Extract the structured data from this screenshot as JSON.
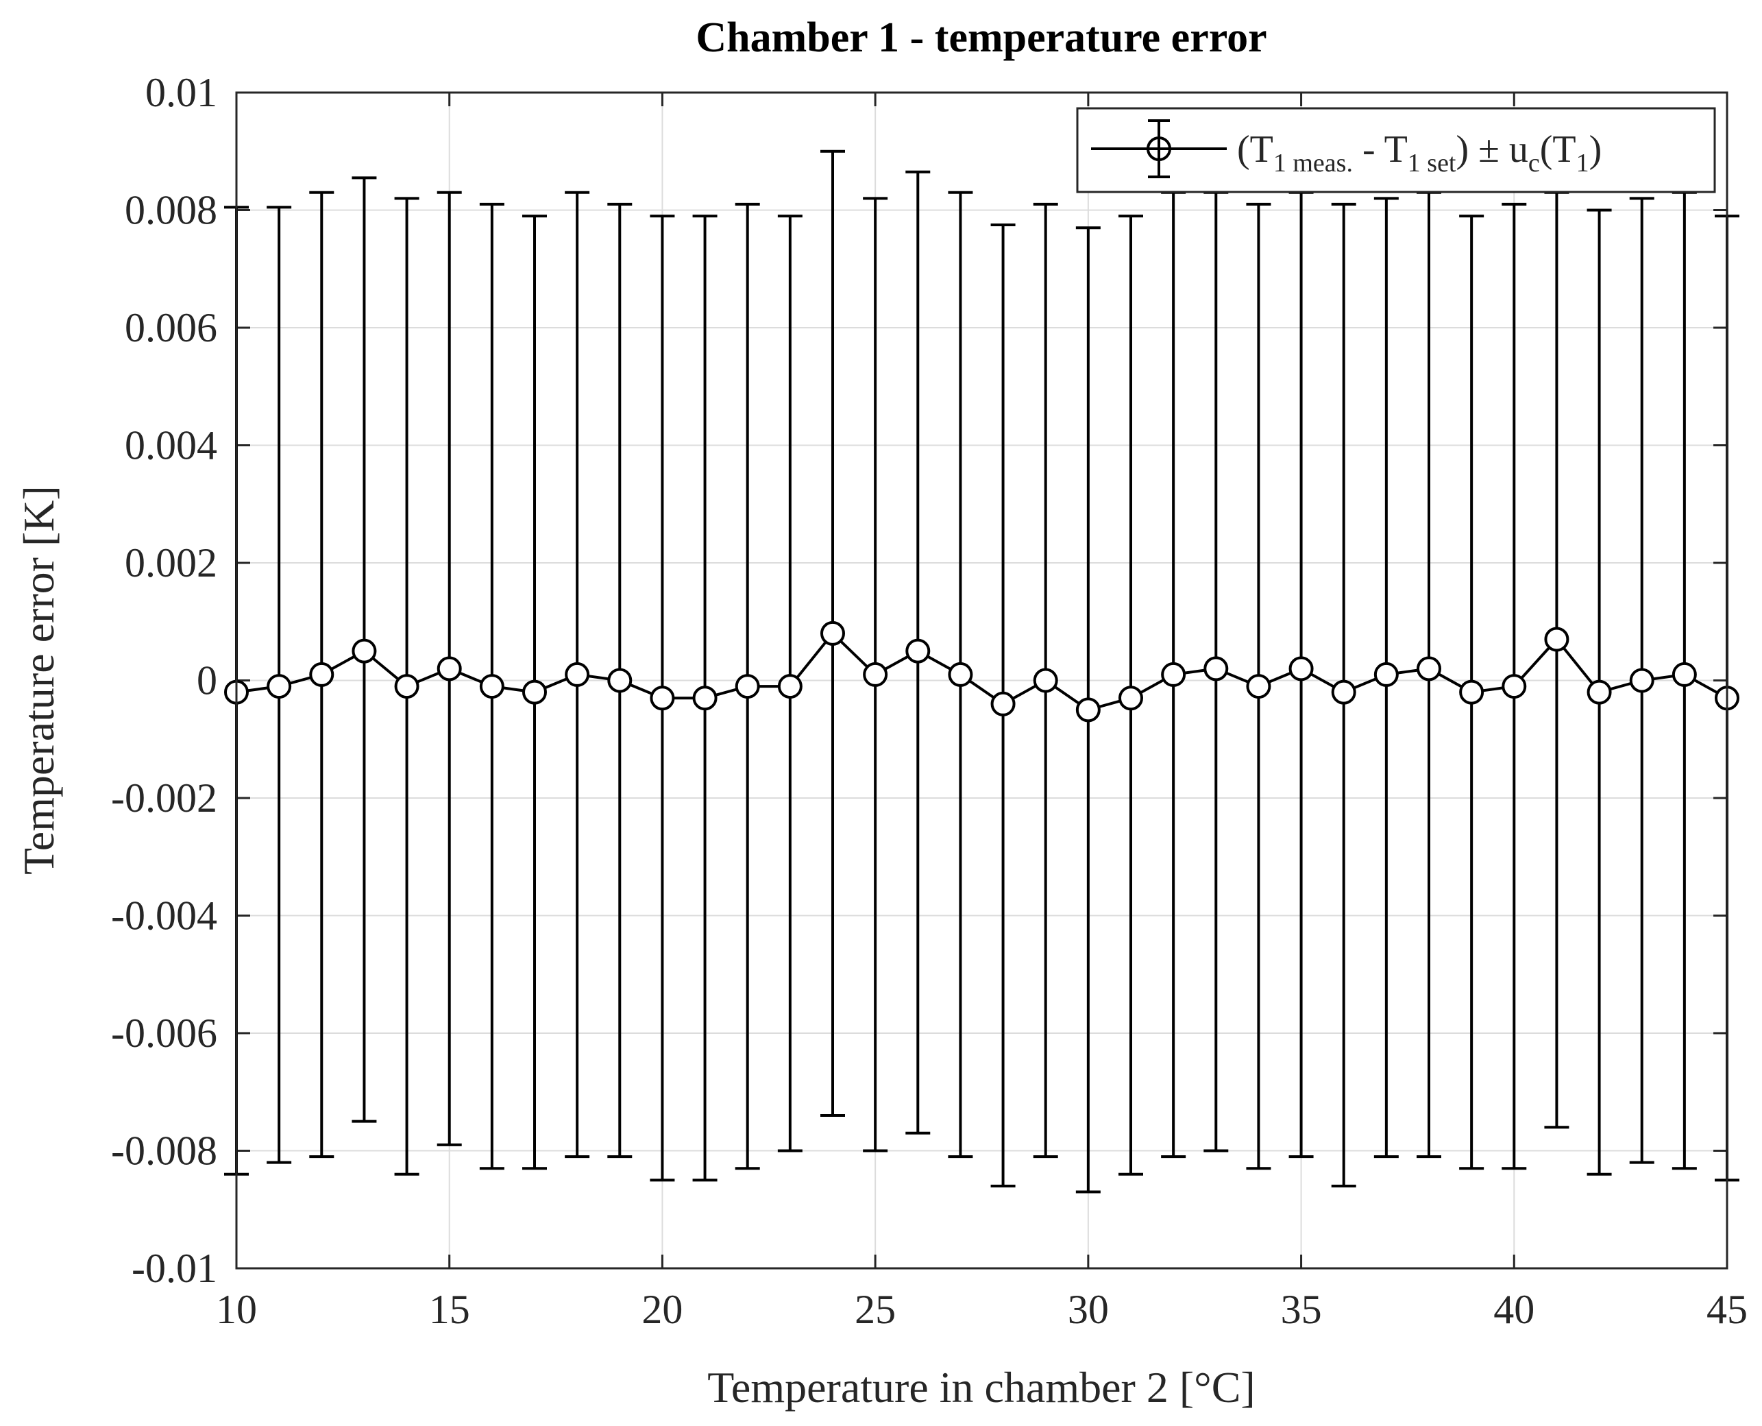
{
  "chart_data": {
    "type": "scatter",
    "title": "Chamber 1 - temperature error",
    "xlabel": "Temperature in chamber 2 [°C]",
    "ylabel": "Temperature error [K]",
    "xlim": [
      10,
      45
    ],
    "ylim": [
      -0.01,
      0.01
    ],
    "xticks": [
      10,
      15,
      20,
      25,
      30,
      35,
      40,
      45
    ],
    "xtick_labels": [
      "10",
      "15",
      "20",
      "25",
      "30",
      "35",
      "40",
      "45"
    ],
    "yticks": [
      -0.01,
      -0.008,
      -0.006,
      -0.004,
      -0.002,
      0,
      0.002,
      0.004,
      0.006,
      0.008,
      0.01
    ],
    "ytick_labels": [
      "-0.01",
      "-0.008",
      "-0.006",
      "-0.004",
      "-0.002",
      "0",
      "0.002",
      "0.004",
      "0.006",
      "0.008",
      "0.01"
    ],
    "grid": true,
    "legend_position": "top-right",
    "legend": {
      "open": "(T",
      "sub1": "1 meas.",
      "mid": " - T",
      "sub2": "1 set",
      "close": ") ± u",
      "sub3": "c",
      "tail_open": "(T",
      "sub4": "1",
      "tail_close": ")"
    },
    "series": [
      {
        "marker": "circle",
        "line": "solid",
        "color": "#000000",
        "x": [
          10,
          11,
          12,
          13,
          14,
          15,
          16,
          17,
          18,
          19,
          20,
          21,
          22,
          23,
          24,
          25,
          26,
          27,
          28,
          29,
          30,
          31,
          32,
          33,
          34,
          35,
          36,
          37,
          38,
          39,
          40,
          41,
          42,
          43,
          44,
          45
        ],
        "y": [
          -0.0002,
          -0.0001,
          0.0001,
          0.0005,
          -0.0001,
          0.0002,
          -0.0001,
          -0.0002,
          0.0001,
          0.0,
          -0.0003,
          -0.0003,
          -0.0001,
          -0.0001,
          0.0008,
          0.0001,
          0.0005,
          0.0001,
          -0.0004,
          0.0,
          -0.0005,
          -0.0003,
          0.0001,
          0.0002,
          -0.0001,
          0.0002,
          -0.0002,
          0.0001,
          0.0002,
          -0.0002,
          -0.0001,
          0.0007,
          -0.0002,
          0.0,
          0.0001,
          -0.0003
        ],
        "upper": [
          0.00805,
          0.00805,
          0.0083,
          0.00855,
          0.0082,
          0.0083,
          0.0081,
          0.0079,
          0.0083,
          0.0081,
          0.0079,
          0.0079,
          0.0081,
          0.0079,
          0.009,
          0.0082,
          0.00865,
          0.0083,
          0.00775,
          0.0081,
          0.0077,
          0.0079,
          0.0083,
          0.0083,
          0.0081,
          0.0083,
          0.0081,
          0.0082,
          0.0083,
          0.0079,
          0.0081,
          0.0083,
          0.008,
          0.0082,
          0.0083,
          0.0079
        ],
        "lower": [
          -0.0084,
          -0.0082,
          -0.0081,
          -0.0075,
          -0.0084,
          -0.0079,
          -0.0083,
          -0.0083,
          -0.0081,
          -0.0081,
          -0.0085,
          -0.0085,
          -0.0083,
          -0.008,
          -0.0074,
          -0.008,
          -0.0077,
          -0.0081,
          -0.0086,
          -0.0081,
          -0.0087,
          -0.0084,
          -0.0081,
          -0.008,
          -0.0083,
          -0.0081,
          -0.0086,
          -0.0081,
          -0.0081,
          -0.0083,
          -0.0083,
          -0.0076,
          -0.0084,
          -0.0082,
          -0.0083,
          -0.0085
        ]
      }
    ]
  }
}
